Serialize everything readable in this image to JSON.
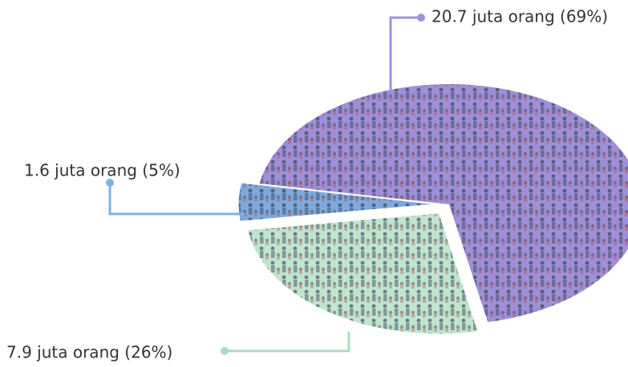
{
  "chart_data": {
    "type": "pie",
    "series": [
      {
        "values": [
          69,
          5,
          26
        ],
        "value_labels": [
          "20.7 juta orang (69%)",
          "1.6 juta orang (5%)",
          "7.9 juta orang (26%)"
        ],
        "colors": [
          "#9d90d8",
          "#7ea9dc",
          "#bfe4d0"
        ]
      }
    ]
  }
}
